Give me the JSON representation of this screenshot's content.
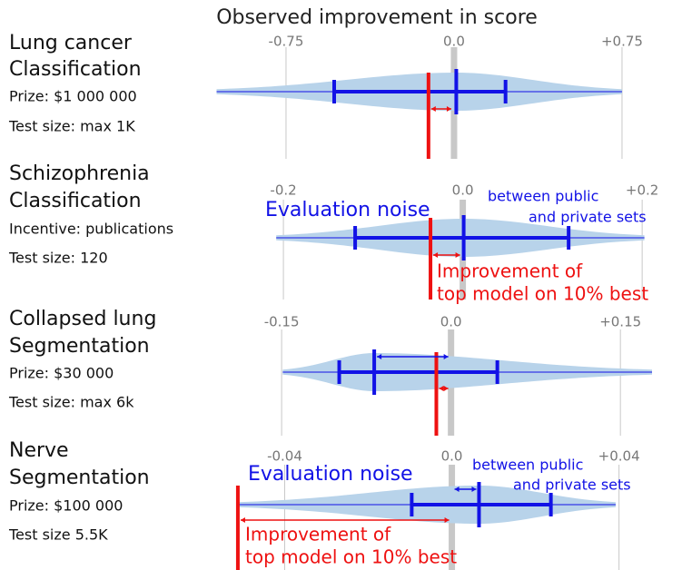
{
  "title": "Observed improvement in score",
  "chart_data": [
    {
      "type": "violin",
      "name_lines": [
        "Lung cancer",
        "Classification"
      ],
      "details": [
        "Prize: $1 000 000",
        "Test size: max 1K"
      ],
      "xlim": [
        -1.062,
        0.884
      ],
      "xticks": [
        {
          "value": -0.75,
          "label": "-0.75"
        },
        {
          "value": 0,
          "label": "0.0"
        },
        {
          "value": 0.75,
          "label": "+0.75"
        }
      ],
      "range": [
        -1.06,
        0.75
      ],
      "interval": [
        -0.535,
        0.23
      ],
      "median": 0.01,
      "top_model": -0.114,
      "noise_arrow": false
    },
    {
      "type": "violin",
      "name_lines": [
        "Schizophrenia",
        "Classification"
      ],
      "details": [
        "Incentive: publications",
        "Test size: 120"
      ],
      "xlim": [
        -0.275,
        0.211
      ],
      "xticks": [
        {
          "value": -0.2,
          "label": "-0.2"
        },
        {
          "value": 0,
          "label": "0.0"
        },
        {
          "value": 0.2,
          "label": "+0.2"
        }
      ],
      "range": [
        -0.208,
        0.2025
      ],
      "interval": [
        -0.12,
        0.118
      ],
      "median": 0.001,
      "top_model": -0.036,
      "noise_arrow": false,
      "noise_label": "Evaluation noise",
      "noise_note": [
        "between public",
        "and private sets"
      ],
      "improvement_note": [
        "Improvement of",
        "top model on 10% best"
      ]
    },
    {
      "type": "violin",
      "name_lines": [
        "Collapsed lung",
        "Segmentation"
      ],
      "details": [
        "Prize: $30 000",
        "Test size: max 6k"
      ],
      "xlim": [
        -0.208,
        0.178
      ],
      "xticks": [
        {
          "value": -0.15,
          "label": "-0.15"
        },
        {
          "value": 0,
          "label": "0.0"
        },
        {
          "value": 0.15,
          "label": "+0.15"
        }
      ],
      "range": [
        -0.149,
        0.178
      ],
      "interval": [
        -0.099,
        0.041
      ],
      "median": -0.068,
      "top_model": -0.013,
      "noise_arrow": true
    },
    {
      "type": "violin",
      "name_lines": [
        "Nerve",
        "Segmentation"
      ],
      "details": [
        "Prize: $100 000",
        "Test size 5.5K"
      ],
      "xlim": [
        -0.0564,
        0.0479
      ],
      "xticks": [
        {
          "value": -0.04,
          "label": "-0.04"
        },
        {
          "value": 0,
          "label": "0.0"
        },
        {
          "value": 0.04,
          "label": "+0.04"
        }
      ],
      "range": [
        -0.0512,
        0.0392
      ],
      "interval": [
        -0.0096,
        0.0237
      ],
      "median": 0.0065,
      "top_model": -0.0512,
      "noise_arrow": true,
      "noise_label": "Evaluation noise",
      "noise_note": [
        "between public",
        "and private sets"
      ],
      "improvement_note": [
        "Improvement of",
        "top model on 10% best"
      ]
    }
  ]
}
